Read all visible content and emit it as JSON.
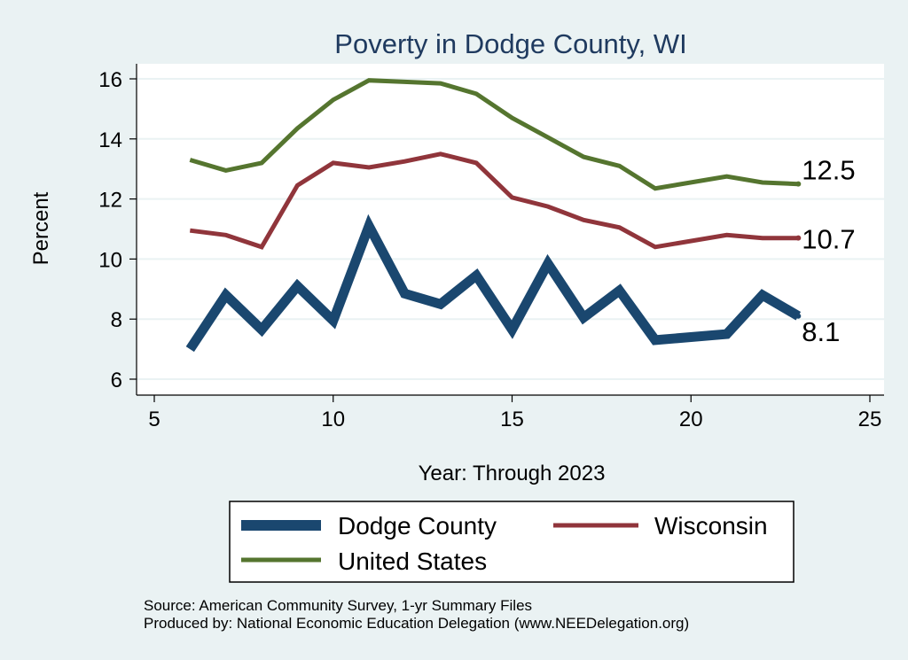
{
  "chart_data": {
    "type": "line",
    "title": "Poverty in Dodge County, WI",
    "xlabel": "Year: Through 2023",
    "ylabel": "Percent",
    "xlim": [
      5,
      25
    ],
    "ylim": [
      6,
      16
    ],
    "xticks": [
      5,
      10,
      15,
      20,
      25
    ],
    "yticks": [
      6,
      8,
      10,
      12,
      14,
      16
    ],
    "grid": true,
    "legend_position": "bottom",
    "series": [
      {
        "name": "Dodge County",
        "color": "#1a476f",
        "end_label": "8.1",
        "x": [
          6,
          7,
          8,
          9,
          10,
          11,
          12,
          13,
          14,
          15,
          16,
          17,
          18,
          19,
          21,
          22,
          23
        ],
        "y": [
          7.0,
          8.8,
          7.65,
          9.1,
          7.95,
          11.1,
          8.85,
          8.5,
          9.45,
          7.65,
          9.85,
          8.05,
          8.95,
          7.3,
          7.5,
          8.8,
          8.1
        ]
      },
      {
        "name": "Wisconsin",
        "color": "#90353b",
        "end_label": "10.7",
        "x": [
          6,
          7,
          8,
          9,
          10,
          11,
          12,
          13,
          14,
          15,
          16,
          17,
          18,
          19,
          21,
          22,
          23
        ],
        "y": [
          10.95,
          10.8,
          10.4,
          12.45,
          13.2,
          13.05,
          13.25,
          13.5,
          13.2,
          12.05,
          11.75,
          11.3,
          11.05,
          10.4,
          10.8,
          10.7,
          10.7
        ]
      },
      {
        "name": "United States",
        "color": "#55752f",
        "end_label": "12.5",
        "x": [
          6,
          7,
          8,
          9,
          10,
          11,
          12,
          13,
          14,
          15,
          16,
          17,
          18,
          19,
          21,
          22,
          23
        ],
        "y": [
          13.3,
          12.95,
          13.2,
          14.35,
          15.3,
          15.95,
          15.9,
          15.85,
          15.5,
          14.7,
          14.05,
          13.4,
          13.1,
          12.35,
          12.75,
          12.55,
          12.5
        ]
      }
    ]
  },
  "legend_items": [
    "Dodge County",
    "Wisconsin",
    "United States"
  ],
  "source_lines": [
    "Source: American Community Survey, 1-yr Summary Files",
    "Produced by: National Economic Education Delegation (www.NEEDelegation.org)"
  ]
}
